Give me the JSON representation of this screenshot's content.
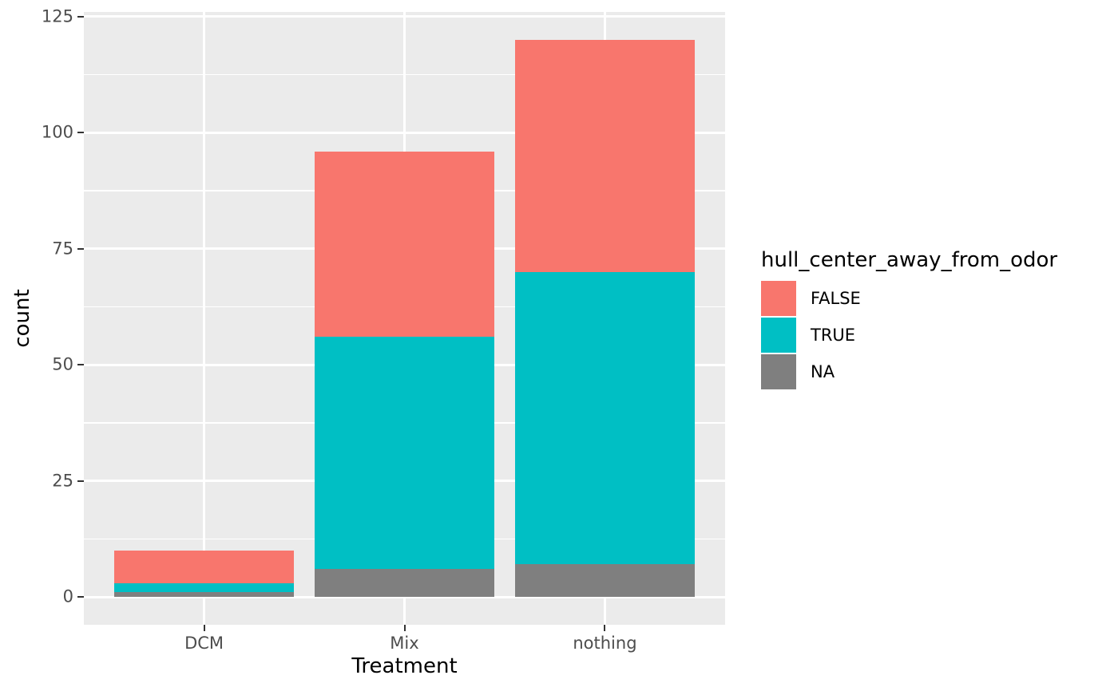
{
  "chart_data": {
    "type": "bar",
    "stacked": true,
    "title": "",
    "xlabel": "Treatment",
    "ylabel": "count",
    "categories": [
      "DCM",
      "Mix",
      "nothing"
    ],
    "series": [
      {
        "name": "FALSE",
        "color": "#F8766D",
        "values": [
          7,
          40,
          50
        ]
      },
      {
        "name": "TRUE",
        "color": "#00BFC4",
        "values": [
          2,
          50,
          63
        ]
      },
      {
        "name": "NA",
        "color": "#7F7F7F",
        "values": [
          1,
          6,
          7
        ]
      }
    ],
    "stack_order_bottom_to_top": [
      "NA",
      "TRUE",
      "FALSE"
    ],
    "totals": [
      10,
      96,
      120
    ],
    "ylim": [
      0,
      125
    ],
    "yticks": [
      0,
      25,
      50,
      75,
      100,
      125
    ],
    "ytick_labels": [
      "0",
      "25",
      "50",
      "75",
      "100",
      "125"
    ],
    "grid": true,
    "legend_title": "hull_center_away_from_odor",
    "legend_position": "right",
    "style": {
      "panel_background": "#EBEBEB",
      "grid_color": "#FFFFFF",
      "tick_mark_color": "#333333",
      "axis_text_color": "#4D4D4D",
      "title_text_color": "#000000"
    }
  }
}
